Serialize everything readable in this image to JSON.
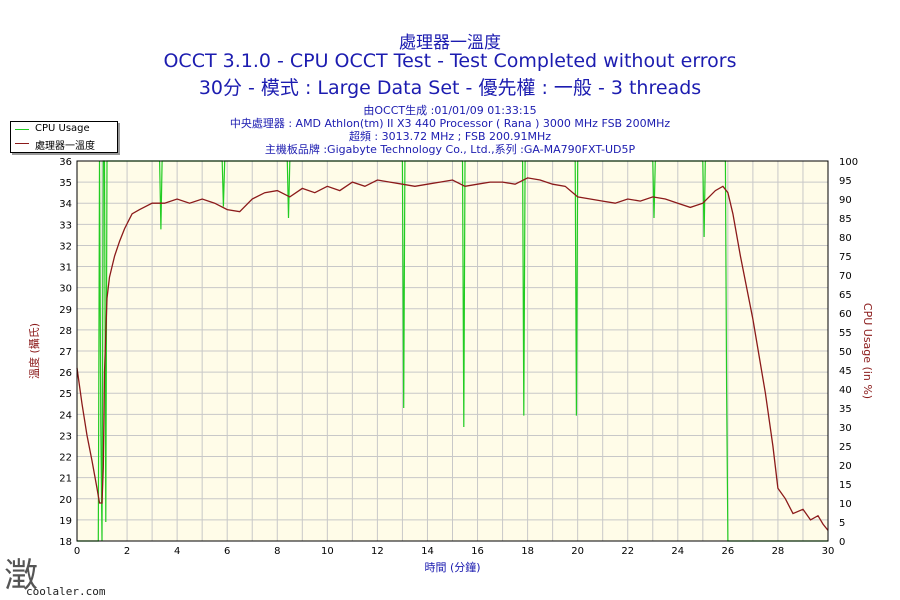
{
  "chart_data": {
    "type": "line",
    "title": "處理器一溫度",
    "subtitle1": "OCCT 3.1.0 - CPU OCCT Test - Test Completed without errors",
    "subtitle2": "30分 - 模式 : Large Data Set - 優先權 : 一般 - 3 threads",
    "info_lines": [
      "由OCCT生成 :01/01/09 01:33:15",
      "中央處理器 : AMD Athlon(tm) II X3 440 Processor ( Rana ) 3000 MHz FSB 200MHz",
      "超頻 : 3013.72 MHz ; FSB 200.91MHz",
      "主機板品牌 :Gigabyte Technology Co., Ltd.,系列 :GA-MA790FXT-UD5P"
    ],
    "xlabel": "時間 (分鐘)",
    "ylabel_left": "溫度 (攝氏)",
    "ylabel_right": "CPU Usage (in %)",
    "xlim": [
      0,
      30
    ],
    "ylim_left": [
      18,
      36
    ],
    "ylim_right": [
      0,
      100
    ],
    "x_ticks": [
      0,
      2,
      4,
      6,
      8,
      10,
      12,
      14,
      16,
      18,
      20,
      22,
      24,
      26,
      28,
      30
    ],
    "y_ticks_left": [
      18,
      19,
      20,
      21,
      22,
      23,
      24,
      25,
      26,
      27,
      28,
      29,
      30,
      31,
      32,
      33,
      34,
      35,
      36
    ],
    "y_ticks_right": [
      0,
      5,
      10,
      15,
      20,
      25,
      30,
      35,
      40,
      45,
      50,
      55,
      60,
      65,
      70,
      75,
      80,
      85,
      90,
      95,
      100
    ],
    "grid": true,
    "legend_position": "top-left",
    "colors": {
      "temp": "#8b1a1a",
      "cpu": "#22cc22",
      "text": "#1c1cb0",
      "plot_bg": "#fffce8",
      "grid": "#c8c8c8"
    },
    "series": [
      {
        "name": "處理器一溫度",
        "axis": "left",
        "x": [
          0,
          0.2,
          0.4,
          0.6,
          0.8,
          0.9,
          1.0,
          1.05,
          1.1,
          1.2,
          1.3,
          1.5,
          1.7,
          1.9,
          2.2,
          2.5,
          3.0,
          3.5,
          4.0,
          4.5,
          5.0,
          5.5,
          6.0,
          6.5,
          7.0,
          7.5,
          8.0,
          8.5,
          9.0,
          9.5,
          10.0,
          10.5,
          11.0,
          11.5,
          12.0,
          12.5,
          13.0,
          13.5,
          14.0,
          14.5,
          15.0,
          15.5,
          16.0,
          16.5,
          17.0,
          17.5,
          18.0,
          18.5,
          19.0,
          19.5,
          20.0,
          20.5,
          21.0,
          21.5,
          22.0,
          22.5,
          23.0,
          23.5,
          24.0,
          24.5,
          25.0,
          25.5,
          25.8,
          26.0,
          26.2,
          26.5,
          27.0,
          27.5,
          27.8,
          28.0,
          28.3,
          28.6,
          29.0,
          29.3,
          29.6,
          29.8,
          30.0
        ],
        "values": [
          26.2,
          24.5,
          23.0,
          21.8,
          20.5,
          19.8,
          19.8,
          21.5,
          26.0,
          29.5,
          30.5,
          31.5,
          32.2,
          32.8,
          33.5,
          33.7,
          34.0,
          34.0,
          34.2,
          34.0,
          34.2,
          34.0,
          33.7,
          33.6,
          34.2,
          34.5,
          34.6,
          34.3,
          34.7,
          34.5,
          34.8,
          34.6,
          35.0,
          34.8,
          35.1,
          35.0,
          34.9,
          34.8,
          34.9,
          35.0,
          35.1,
          34.8,
          34.9,
          35.0,
          35.0,
          34.9,
          35.2,
          35.1,
          34.9,
          34.8,
          34.3,
          34.2,
          34.1,
          34.0,
          34.2,
          34.1,
          34.3,
          34.2,
          34.0,
          33.8,
          34.0,
          34.6,
          34.8,
          34.5,
          33.5,
          31.5,
          28.5,
          25.0,
          22.5,
          20.5,
          20.0,
          19.3,
          19.5,
          19.0,
          19.2,
          18.8,
          18.5
        ]
      },
      {
        "name": "CPU Usage",
        "axis": "right",
        "x": [
          0,
          0.8,
          0.85,
          0.9,
          0.95,
          1.0,
          1.05,
          1.1,
          1.15,
          1.2,
          3.3,
          3.35,
          3.4,
          5.8,
          5.85,
          5.9,
          8.4,
          8.45,
          8.5,
          13.0,
          13.05,
          13.1,
          15.4,
          15.45,
          15.5,
          17.8,
          17.85,
          17.9,
          19.9,
          19.95,
          20.0,
          23.0,
          23.05,
          23.1,
          25.0,
          25.05,
          25.1,
          25.9,
          25.95,
          26.0,
          26.05,
          26.1,
          30
        ],
        "values": [
          0,
          0,
          0,
          100,
          30,
          0,
          100,
          100,
          5,
          100,
          100,
          82,
          100,
          100,
          88,
          100,
          100,
          85,
          100,
          100,
          35,
          100,
          100,
          30,
          100,
          100,
          33,
          100,
          100,
          33,
          100,
          100,
          85,
          100,
          100,
          80,
          100,
          100,
          40,
          0,
          0,
          0,
          0
        ]
      }
    ]
  },
  "watermark": {
    "text": "coolaler.com",
    "glyph": "澂"
  }
}
